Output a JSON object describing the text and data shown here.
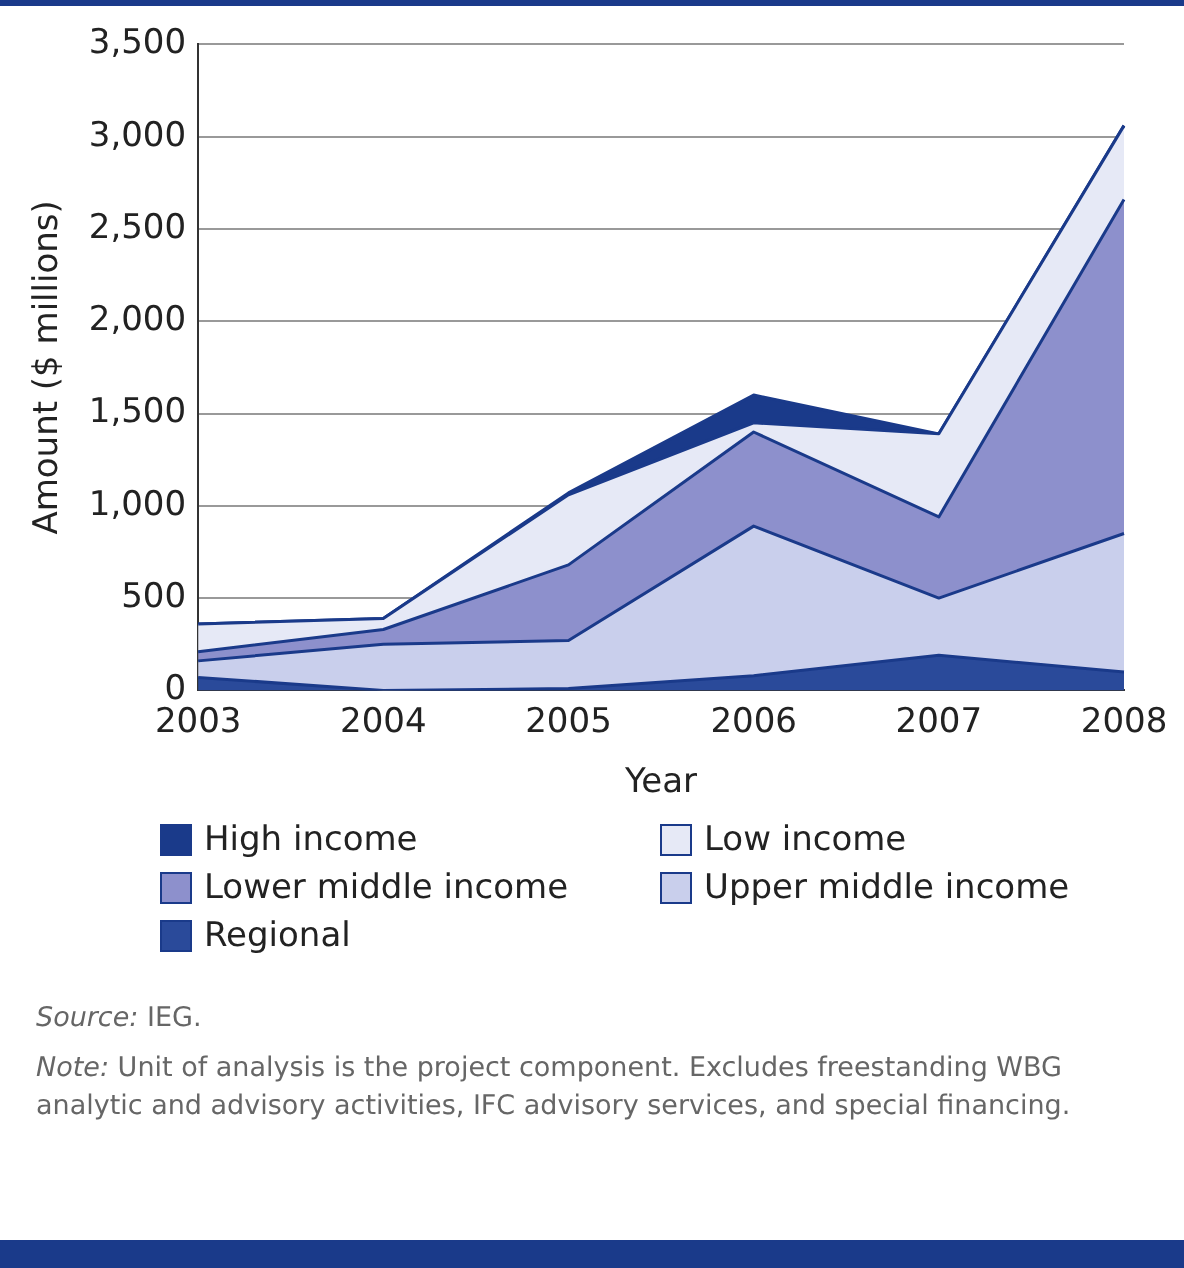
{
  "chart_data": {
    "type": "area",
    "stacked": true,
    "xlabel": "Year",
    "ylabel": "Amount ($ millions)",
    "categories": [
      "2003",
      "2004",
      "2005",
      "2006",
      "2007",
      "2008"
    ],
    "series": [
      {
        "name": "Regional",
        "color": "#2a4a9a",
        "values": [
          70,
          0,
          10,
          80,
          190,
          100
        ]
      },
      {
        "name": "Upper middle income",
        "color": "#c9cfec",
        "values": [
          90,
          250,
          260,
          810,
          310,
          750
        ]
      },
      {
        "name": "Lower middle income",
        "color": "#8d90cc",
        "values": [
          50,
          80,
          410,
          510,
          440,
          1810
        ]
      },
      {
        "name": "Low income",
        "color": "#e6e9f6",
        "values": [
          150,
          60,
          380,
          50,
          450,
          400
        ]
      },
      {
        "name": "High income",
        "color": "#1a3a8a",
        "values": [
          0,
          0,
          10,
          150,
          0,
          0
        ]
      }
    ],
    "ylim": [
      0,
      3500
    ],
    "yticks": [
      0,
      500,
      {
        "value": 1000,
        "label": "1,000"
      },
      {
        "value": 1500,
        "label": "1,500"
      },
      {
        "value": 2000,
        "label": "2,000"
      },
      {
        "value": 2500,
        "label": "2,500"
      },
      {
        "value": 3000,
        "label": "3,000"
      },
      {
        "value": 3500,
        "label": "3,500"
      }
    ],
    "grid": "y",
    "legend": "bottom",
    "annotations": [
      "Source: IEG.",
      "Note: Unit of analysis is the project component. Excludes freestanding WBG analytic and advisory activities, IFC advisory services, and special financing."
    ]
  }
}
